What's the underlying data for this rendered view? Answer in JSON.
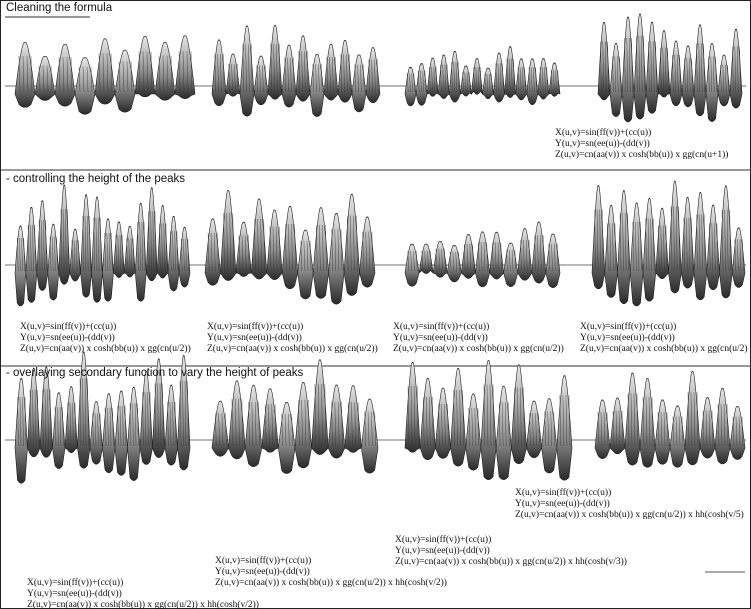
{
  "sections": [
    {
      "title": "Cleaning the formula",
      "formulas": [
        [
          "X(u,v)=sin(ff(v))+(cc(u))",
          "Y(u,v)=sn(ee(u))-(dd(v))",
          "Z(u,v)=cn(aa(v)) x cosh(bb(u)) x gg(cn(u+1))"
        ]
      ]
    },
    {
      "title": "- controlling the height of the peaks",
      "formulas": [
        [
          "X(u,v)=sin(ff(v))+(cc(u))",
          "Y(u,v)=sn(ee(u))-(dd(v))",
          "Z(u,v)=cn(aa(v)) x cosh(bb(u)) x gg(cn(u/2))"
        ],
        [
          "X(u,v)=sin(ff(v))+(cc(u))",
          "Y(u,v)=sn(ee(u))-(dd(v))",
          "Z(u,v)=cn(aa(v)) x cosh(bb(u)) x gg(cn(u/2))"
        ],
        [
          "X(u,v)=sin(ff(v))+(cc(u))",
          "Y(u,v)=sn(ee(u))-(dd(v))",
          "Z(u,v)=cn(aa(v)) x cosh(bb(u)) x gg(cn(u/2))"
        ],
        [
          "X(u,v)=sin(ff(v))+(cc(u))",
          "Y(u,v)=sn(ee(u))-(dd(v))",
          "Z(u,v)=cn(aa(v)) x cosh(bb(u)) x gg(cn(u/2)"
        ]
      ]
    },
    {
      "title": "- overlaying secondary function to vary the height of peaks",
      "formulas": [
        [
          "X(u,v)=sin(ff(v))+(cc(u))",
          "Y(u,v)=sn(ee(u))-(dd(v))",
          "Z(u,v)=cn(aa(v)) x cosh(bb(u)) x gg(cn(u/2)) x hh(cosh(v/2))"
        ],
        [
          "X(u,v)=sin(ff(v))+(cc(u))",
          "Y(u,v)=sn(ee(u))-(dd(v))",
          "Z(u,v)=cn(aa(v)) x cosh(bb(u)) x gg(cn(u/2)) x hh(cosh(v/2))"
        ],
        [
          "X(u,v)=sin(ff(v))+(cc(u))",
          "Y(u,v)=sn(ee(u))-(dd(v))",
          "Z(u,v)=cn(aa(v)) x cosh(bb(u)) x gg(cn(u/2)) x hh(cosh(v/3))"
        ],
        [
          "X(u,v)=sin(ff(v))+(cc(u))",
          "Y(u,v)=sn(ee(u))-(dd(v))",
          "Z(u,v)=cn(aa(v)) x cosh(bb(u)) x gg(cn(u/2)) x hh(cosh(v/5)"
        ]
      ]
    }
  ]
}
